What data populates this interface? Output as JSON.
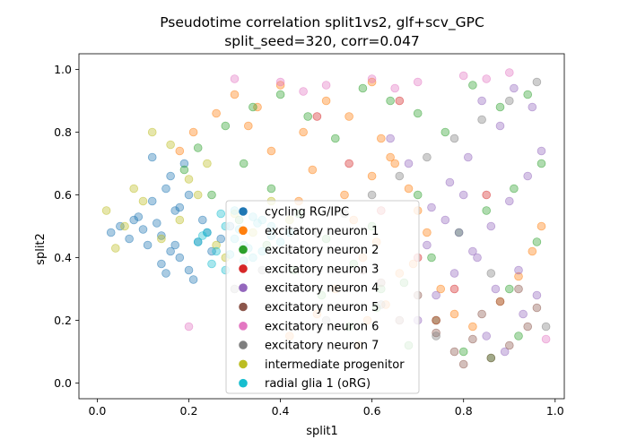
{
  "chart_data": {
    "type": "scatter",
    "title": "Pseudotime correlation split1vs2, glf+scv_GPC",
    "subtitle": "split_seed=320, corr=0.047",
    "xlabel": "split1",
    "ylabel": "split2",
    "xlim": [
      -0.04,
      1.02
    ],
    "ylim": [
      -0.05,
      1.05
    ],
    "x_ticks": [
      "0.0",
      "0.2",
      "0.4",
      "0.6",
      "0.8",
      "1.0"
    ],
    "y_ticks": [
      "0.0",
      "0.2",
      "0.4",
      "0.6",
      "0.8",
      "1.0"
    ],
    "grid": false,
    "legend_position": "lower-center",
    "series": [
      {
        "name": "cycling RG/IPC",
        "color": "#1f77b4",
        "x": [
          0.03,
          0.05,
          0.07,
          0.08,
          0.1,
          0.11,
          0.13,
          0.14,
          0.16,
          0.17,
          0.12,
          0.15,
          0.18,
          0.2,
          0.09,
          0.22,
          0.19,
          0.16,
          0.21,
          0.24,
          0.14,
          0.17,
          0.18,
          0.23,
          0.27,
          0.12,
          0.15,
          0.2,
          0.29,
          0.25
        ],
        "y": [
          0.48,
          0.5,
          0.46,
          0.52,
          0.49,
          0.44,
          0.51,
          0.47,
          0.42,
          0.55,
          0.58,
          0.62,
          0.4,
          0.36,
          0.53,
          0.45,
          0.7,
          0.66,
          0.33,
          0.48,
          0.38,
          0.44,
          0.56,
          0.52,
          0.46,
          0.72,
          0.35,
          0.6,
          0.5,
          0.42
        ]
      },
      {
        "name": "excitatory neuron 1",
        "color": "#ff7f0e",
        "x": [
          0.3,
          0.35,
          0.4,
          0.45,
          0.5,
          0.55,
          0.6,
          0.62,
          0.65,
          0.68,
          0.7,
          0.72,
          0.58,
          0.52,
          0.48,
          0.42,
          0.66,
          0.63,
          0.57,
          0.54,
          0.47,
          0.38,
          0.33,
          0.61,
          0.69,
          0.75,
          0.78,
          0.82,
          0.88,
          0.92,
          0.95,
          0.97,
          0.56,
          0.44,
          0.26,
          0.21,
          0.18,
          0.6,
          0.64,
          0.59
        ],
        "y": [
          0.92,
          0.88,
          0.95,
          0.8,
          0.9,
          0.85,
          0.96,
          0.78,
          0.7,
          0.62,
          0.55,
          0.48,
          0.4,
          0.3,
          0.22,
          0.15,
          0.35,
          0.25,
          0.12,
          0.6,
          0.68,
          0.74,
          0.82,
          0.45,
          0.38,
          0.3,
          0.22,
          0.18,
          0.26,
          0.34,
          0.42,
          0.5,
          0.52,
          0.58,
          0.86,
          0.8,
          0.74,
          0.66,
          0.72,
          0.2
        ]
      },
      {
        "name": "excitatory neuron 2",
        "color": "#2ca02c",
        "x": [
          0.22,
          0.28,
          0.34,
          0.4,
          0.46,
          0.52,
          0.58,
          0.64,
          0.7,
          0.76,
          0.82,
          0.88,
          0.94,
          0.97,
          0.91,
          0.85,
          0.79,
          0.73,
          0.67,
          0.61,
          0.55,
          0.49,
          0.43,
          0.37,
          0.31,
          0.25,
          0.19,
          0.8,
          0.86,
          0.92,
          0.74,
          0.68,
          0.62,
          0.56,
          0.5,
          0.44,
          0.38,
          0.32,
          0.9,
          0.96,
          0.7,
          0.6
        ],
        "y": [
          0.75,
          0.82,
          0.88,
          0.92,
          0.85,
          0.78,
          0.94,
          0.9,
          0.86,
          0.8,
          0.95,
          0.88,
          0.92,
          0.7,
          0.62,
          0.55,
          0.48,
          0.4,
          0.32,
          0.24,
          0.18,
          0.28,
          0.36,
          0.44,
          0.52,
          0.6,
          0.68,
          0.1,
          0.08,
          0.15,
          0.2,
          0.12,
          0.3,
          0.38,
          0.46,
          0.54,
          0.62,
          0.7,
          0.3,
          0.45,
          0.6,
          0.5
        ]
      },
      {
        "name": "excitatory neuron 3",
        "color": "#d62728",
        "x": [
          0.55,
          0.62,
          0.7,
          0.78,
          0.85,
          0.48,
          0.66,
          0.74
        ],
        "y": [
          0.7,
          0.55,
          0.4,
          0.3,
          0.6,
          0.85,
          0.9,
          0.2
        ]
      },
      {
        "name": "excitatory neuron 4",
        "color": "#9467bd",
        "x": [
          0.7,
          0.74,
          0.78,
          0.82,
          0.86,
          0.9,
          0.94,
          0.97,
          0.88,
          0.84,
          0.8,
          0.76,
          0.72,
          0.92,
          0.96,
          0.68,
          0.64,
          0.85,
          0.89,
          0.93,
          0.81,
          0.77,
          0.73,
          0.95,
          0.91,
          0.87,
          0.83,
          0.79
        ],
        "y": [
          0.2,
          0.28,
          0.35,
          0.42,
          0.5,
          0.58,
          0.66,
          0.74,
          0.82,
          0.9,
          0.6,
          0.52,
          0.44,
          0.36,
          0.28,
          0.7,
          0.78,
          0.15,
          0.1,
          0.22,
          0.72,
          0.64,
          0.56,
          0.88,
          0.94,
          0.3,
          0.4,
          0.48
        ]
      },
      {
        "name": "excitatory neuron 5",
        "color": "#8c564b",
        "x": [
          0.78,
          0.82,
          0.86,
          0.9,
          0.94,
          0.84,
          0.88,
          0.92,
          0.8,
          0.96,
          0.74,
          0.7,
          0.66,
          0.62,
          0.58
        ],
        "y": [
          0.1,
          0.14,
          0.08,
          0.12,
          0.18,
          0.22,
          0.26,
          0.3,
          0.06,
          0.24,
          0.16,
          0.28,
          0.2,
          0.32,
          0.36
        ]
      },
      {
        "name": "excitatory neuron 6",
        "color": "#e377c2",
        "x": [
          0.3,
          0.4,
          0.5,
          0.6,
          0.7,
          0.8,
          0.9,
          0.98,
          0.2,
          0.45,
          0.65,
          0.85
        ],
        "y": [
          0.97,
          0.96,
          0.95,
          0.97,
          0.96,
          0.98,
          0.99,
          0.14,
          0.18,
          0.93,
          0.94,
          0.97
        ]
      },
      {
        "name": "excitatory neuron 7",
        "color": "#7f7f7f",
        "x": [
          0.3,
          0.36,
          0.42,
          0.48,
          0.54,
          0.6,
          0.66,
          0.72,
          0.78,
          0.84,
          0.9,
          0.96,
          0.5,
          0.62,
          0.74,
          0.86,
          0.98
        ],
        "y": [
          0.3,
          0.36,
          0.42,
          0.48,
          0.54,
          0.6,
          0.66,
          0.72,
          0.78,
          0.84,
          0.9,
          0.96,
          0.2,
          0.25,
          0.15,
          0.35,
          0.18
        ]
      },
      {
        "name": "intermediate progenitor",
        "color": "#bcbd22",
        "x": [
          0.02,
          0.04,
          0.06,
          0.1,
          0.14,
          0.18,
          0.22,
          0.26,
          0.3,
          0.12,
          0.16,
          0.2,
          0.24,
          0.28,
          0.08,
          0.34,
          0.38,
          0.42
        ],
        "y": [
          0.55,
          0.43,
          0.5,
          0.58,
          0.46,
          0.52,
          0.6,
          0.44,
          0.54,
          0.8,
          0.76,
          0.65,
          0.7,
          0.4,
          0.62,
          0.48,
          0.58,
          0.52
        ]
      },
      {
        "name": "radial glia 1 (oRG)",
        "color": "#17becf",
        "x": [
          0.22,
          0.24,
          0.26,
          0.28,
          0.3,
          0.32,
          0.34,
          0.36,
          0.38,
          0.25,
          0.27,
          0.29,
          0.31,
          0.33,
          0.35,
          0.23,
          0.4,
          0.42,
          0.28,
          0.3,
          0.32,
          0.34,
          0.36,
          0.38
        ],
        "y": [
          0.45,
          0.48,
          0.42,
          0.5,
          0.46,
          0.44,
          0.4,
          0.52,
          0.47,
          0.38,
          0.54,
          0.41,
          0.49,
          0.43,
          0.51,
          0.47,
          0.45,
          0.48,
          0.36,
          0.55,
          0.39,
          0.53,
          0.42,
          0.5
        ]
      }
    ]
  }
}
